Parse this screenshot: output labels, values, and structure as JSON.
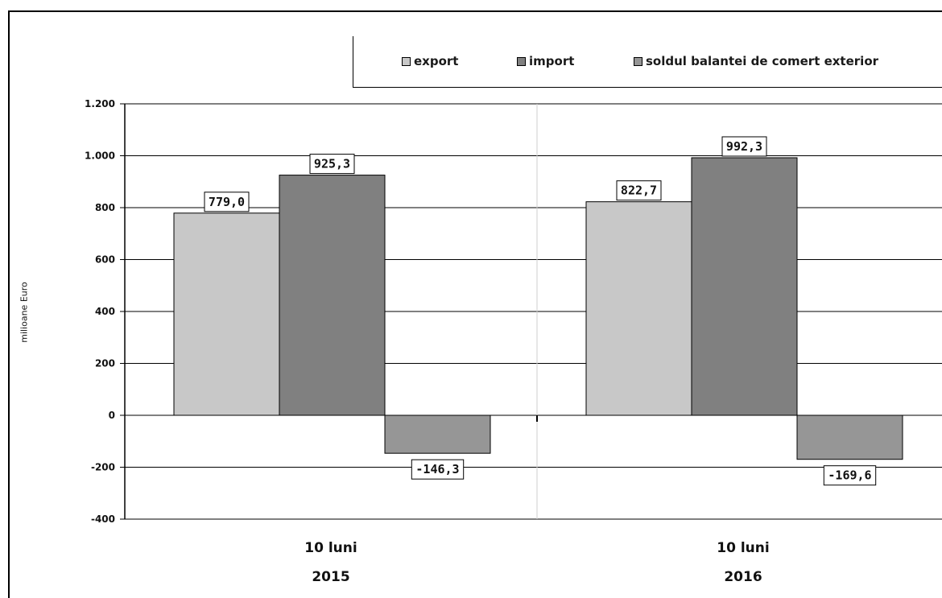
{
  "chart_data": {
    "type": "bar",
    "ylabel": "milioane Euro",
    "ylim": [
      -400,
      1200
    ],
    "yticks": [
      -400,
      -200,
      0,
      200,
      400,
      600,
      800,
      1000,
      1200
    ],
    "ytick_labels": [
      "-400",
      "-200",
      "0",
      "200",
      "400",
      "600",
      "800",
      "1.000",
      "1.200"
    ],
    "categories": [
      {
        "line1": "10 luni",
        "line2": "2015"
      },
      {
        "line1": "10 luni",
        "line2": "2016"
      }
    ],
    "series": [
      {
        "name": "export",
        "color": "#c8c8c8",
        "values": [
          779.0,
          822.7
        ],
        "labels": [
          "779,0",
          "822,7"
        ]
      },
      {
        "name": "import",
        "color": "#808080",
        "values": [
          925.3,
          992.3
        ],
        "labels": [
          "925,3",
          "992,3"
        ]
      },
      {
        "name": "soldul balantei de comert exterior",
        "color": "#969696",
        "values": [
          -146.3,
          -169.6
        ],
        "labels": [
          "-146,3",
          "-169,6"
        ]
      }
    ],
    "grid": "horizontal",
    "legend_position": "top-right"
  }
}
